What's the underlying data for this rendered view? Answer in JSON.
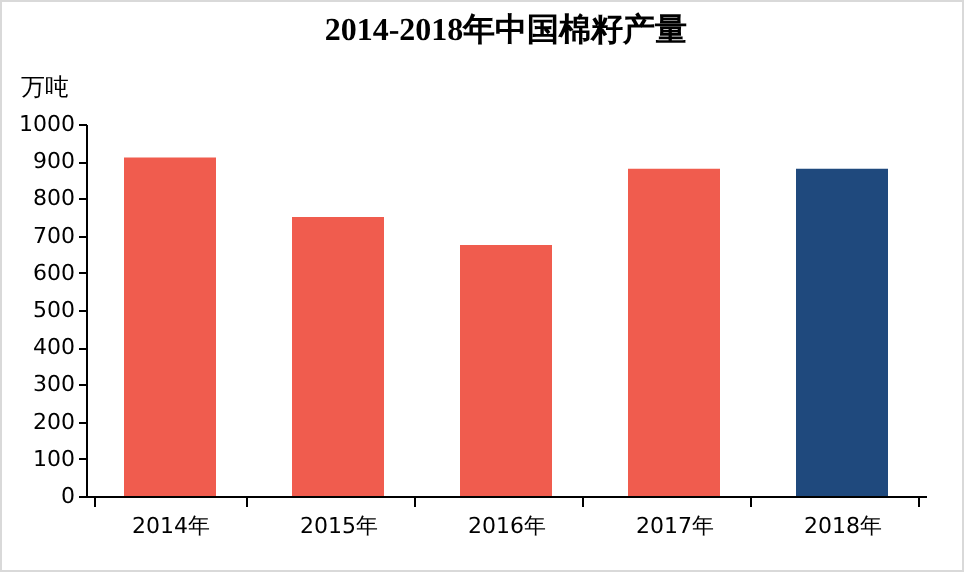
{
  "chart_data": {
    "type": "bar",
    "title": "2014-2018年中国棉籽产量",
    "ylabel": "万吨",
    "categories": [
      "2014年",
      "2015年",
      "2016年",
      "2017年",
      "2018年"
    ],
    "values": [
      910,
      750,
      675,
      880,
      880
    ],
    "colors": [
      "#f05c4e",
      "#f05c4e",
      "#f05c4e",
      "#f05c4e",
      "#1f497d"
    ],
    "ylim": [
      0,
      1000
    ],
    "yticks": [
      0,
      100,
      200,
      300,
      400,
      500,
      600,
      700,
      800,
      900,
      1000
    ],
    "grid": false,
    "legend": false
  }
}
